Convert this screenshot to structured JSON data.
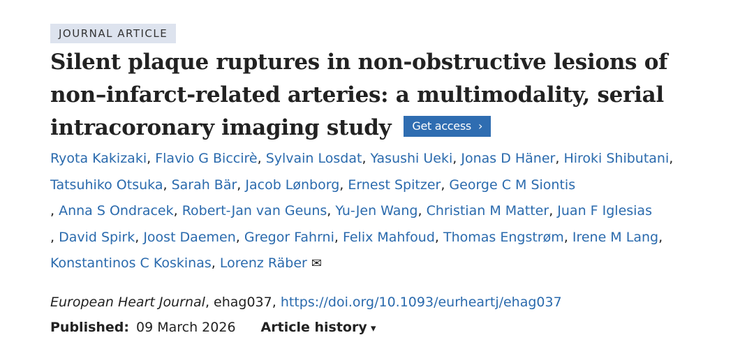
{
  "badge": "JOURNAL ARTICLE",
  "title": "Silent plaque ruptures in non-obstructive lesions of non–infarct-related arteries: a multimodality, serial intracoronary imaging study",
  "access_button": "Get access",
  "authors": [
    "Ryota Kakizaki",
    "Flavio G Biccirè",
    "Sylvain Losdat",
    "Yasushi Ueki",
    "Jonas D Häner",
    "Hiroki Shibutani",
    "Tatsuhiko Otsuka",
    "Sarah Bär",
    "Jacob Lønborg",
    "Ernest Spitzer",
    "George C M Siontis",
    "Anna S Ondracek",
    "Robert-Jan van Geuns",
    "Yu-Jen Wang",
    "Christian M Matter",
    "Juan F Iglesias",
    "David Spirk",
    "Joost Daemen",
    "Gregor Fahrni",
    "Felix Mahfoud",
    "Thomas Engstrøm",
    "Irene M Lang",
    "Konstantinos C Koskinas",
    "Lorenz Räber"
  ],
  "citation": {
    "journal": "European Heart Journal",
    "article_id": "ehag037",
    "doi": "https://doi.org/10.1093/eurheartj/ehag037"
  },
  "published": {
    "label": "Published:",
    "date": "09 March 2026"
  },
  "history": "Article history"
}
